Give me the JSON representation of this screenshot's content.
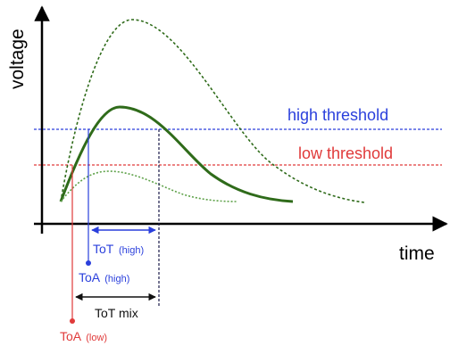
{
  "axes": {
    "y_label": "voltage",
    "x_label": "time"
  },
  "thresholds": {
    "high": {
      "label": "high threshold",
      "color": "#2a3fdc"
    },
    "low": {
      "label": "low threshold",
      "color": "#e03a3a"
    }
  },
  "annotations": {
    "tot_high": {
      "main": "ToT",
      "sub": "(high)",
      "color": "#2a3fdc"
    },
    "toa_high": {
      "main": "ToA",
      "sub": "(high)",
      "color": "#2a3fdc"
    },
    "tot_mix": {
      "main": "ToT mix",
      "color": "#111111"
    },
    "toa_low": {
      "main": "ToA",
      "sub": "(low)",
      "color": "#e03a3a"
    }
  },
  "colors": {
    "pulse": "#2f6b1a",
    "pulse_light": "#5fa24a",
    "axis": "#000000",
    "marker_dark": "#1a1a4a"
  }
}
